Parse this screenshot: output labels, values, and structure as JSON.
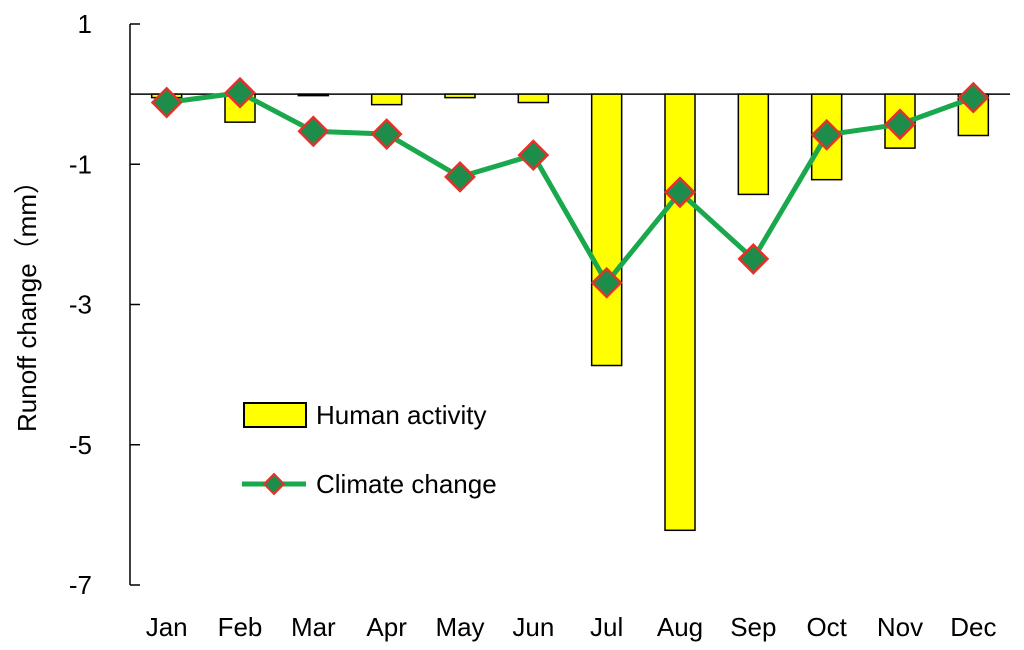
{
  "chart_data": {
    "type": "bar",
    "categories": [
      "Jan",
      "Feb",
      "Mar",
      "Apr",
      "May",
      "Jun",
      "Jul",
      "Aug",
      "Sep",
      "Oct",
      "Nov",
      "Dec"
    ],
    "ylabel": "Runoff change（mm）",
    "xlabel": "",
    "title": "",
    "ylim": [
      -7,
      1
    ],
    "yticks": [
      "1",
      "-1",
      "-3",
      "-5",
      "-7"
    ],
    "ytick_values": [
      1,
      -1,
      -3,
      -5,
      -7
    ],
    "grid": false,
    "legend_position": "lower-left",
    "series": [
      {
        "name": "Human activity",
        "type": "bar",
        "color": "#ffff00",
        "edge_color": "#000000",
        "values": [
          -0.05,
          -0.4,
          -0.02,
          -0.15,
          -0.05,
          -0.12,
          -3.87,
          -6.22,
          -1.43,
          -1.22,
          -0.77,
          -0.59
        ]
      },
      {
        "name": "Climate change",
        "type": "line",
        "color": "#1aa84c",
        "marker_fill": "#1e8c4a",
        "marker_edge": "#e8302a",
        "values": [
          -0.12,
          0.02,
          -0.53,
          -0.57,
          -1.18,
          -0.87,
          -2.69,
          -1.4,
          -2.35,
          -0.58,
          -0.43,
          -0.05
        ]
      }
    ]
  }
}
